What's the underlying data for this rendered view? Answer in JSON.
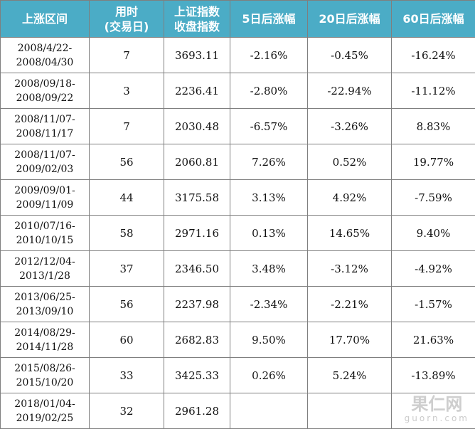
{
  "header": {
    "col1": "上涨区间",
    "col2_line1": "用时",
    "col2_line2": "(交易日)",
    "col3_line1": "上证指数",
    "col3_line2": "收盘指数",
    "col4": "5日后涨幅",
    "col5": "20日后涨幅",
    "col6": "60日后涨幅"
  },
  "rows": [
    {
      "range_start": "2008/4/22-",
      "range_end": "2008/04/30",
      "days": "7",
      "close": "3693.11",
      "d5": "-2.16%",
      "d20": "-0.45%",
      "d60": "-16.24%"
    },
    {
      "range_start": "2008/09/18-",
      "range_end": "2008/09/22",
      "days": "3",
      "close": "2236.41",
      "d5": "-2.80%",
      "d20": "-22.94%",
      "d60": "-11.12%"
    },
    {
      "range_start": "2008/11/07-",
      "range_end": "2008/11/17",
      "days": "7",
      "close": "2030.48",
      "d5": "-6.57%",
      "d20": "-3.26%",
      "d60": "8.83%"
    },
    {
      "range_start": "2008/11/07-",
      "range_end": "2009/02/03",
      "days": "56",
      "close": "2060.81",
      "d5": "7.26%",
      "d20": "0.52%",
      "d60": "19.77%"
    },
    {
      "range_start": "2009/09/01-",
      "range_end": "2009/11/09",
      "days": "44",
      "close": "3175.58",
      "d5": "3.13%",
      "d20": "4.92%",
      "d60": "-7.59%"
    },
    {
      "range_start": "2010/07/16-",
      "range_end": "2010/10/15",
      "days": "58",
      "close": "2971.16",
      "d5": "0.13%",
      "d20": "14.65%",
      "d60": "9.40%"
    },
    {
      "range_start": "2012/12/04-",
      "range_end": "2013/1/28",
      "days": "37",
      "close": "2346.50",
      "d5": "3.48%",
      "d20": "-3.12%",
      "d60": "-4.92%"
    },
    {
      "range_start": "2013/06/25-",
      "range_end": "2013/09/10",
      "days": "56",
      "close": "2237.98",
      "d5": "-2.34%",
      "d20": "-2.21%",
      "d60": "-1.57%"
    },
    {
      "range_start": "2014/08/29-",
      "range_end": "2014/11/28",
      "days": "60",
      "close": "2682.83",
      "d5": "9.50%",
      "d20": "17.70%",
      "d60": "21.63%"
    },
    {
      "range_start": "2015/08/26-",
      "range_end": "2015/10/20",
      "days": "33",
      "close": "3425.33",
      "d5": "0.26%",
      "d20": "5.24%",
      "d60": "-13.89%"
    },
    {
      "range_start": "2018/01/04-",
      "range_end": "2019/02/25",
      "days": "32",
      "close": "2961.28",
      "d5": "",
      "d20": "",
      "d60": ""
    }
  ],
  "watermark": {
    "cn": "果仁网",
    "en": "guorn.com"
  },
  "colors": {
    "header_bg": "#4bacc6",
    "header_text": "#ffffff",
    "border": "#7f7f7f"
  }
}
